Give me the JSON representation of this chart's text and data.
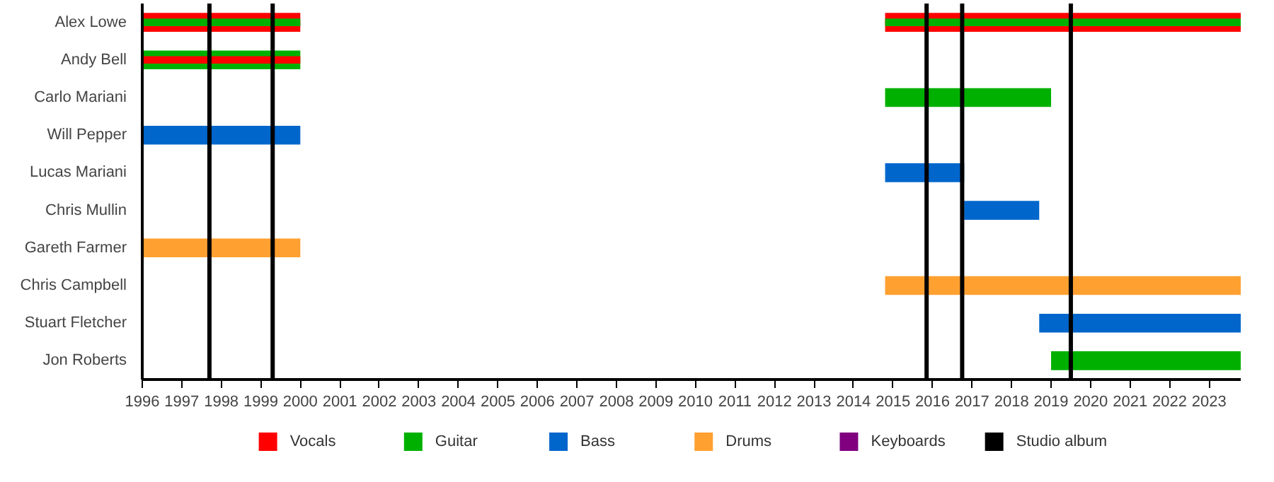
{
  "chart_data": {
    "type": "bar",
    "orientation": "horizontal",
    "categories": [
      "Alex Lowe",
      "Andy Bell",
      "Carlo Mariani",
      "Will Pepper",
      "Lucas Mariani",
      "Chris Mullin",
      "Gareth Farmer",
      "Chris Campbell",
      "Stuart Fletcher",
      "Jon Roberts"
    ],
    "series": [
      {
        "name": "Vocals",
        "color": "#ff0000",
        "base": [
          1996,
          null,
          null,
          null,
          null,
          null,
          null,
          null,
          null,
          null
        ],
        "values": [
          4,
          null,
          null,
          null,
          null,
          null,
          null,
          null,
          null,
          null
        ]
      },
      {
        "color": "#ff0000",
        "base": [
          2014.8,
          null,
          null,
          null,
          null,
          null,
          null,
          null,
          null,
          null
        ],
        "values": [
          9.0,
          null,
          null,
          null,
          null,
          null,
          null,
          null,
          null,
          null
        ]
      },
      {
        "name": "Guitar",
        "color": "#00b000",
        "base": [
          null,
          1996,
          2014.8,
          null,
          null,
          null,
          null,
          null,
          null,
          2019.0
        ],
        "values": [
          null,
          4,
          4.2,
          null,
          null,
          null,
          null,
          null,
          null,
          4.8
        ]
      },
      {
        "color": "#00b000",
        "base": [
          1996,
          null,
          null,
          null,
          null,
          null,
          null,
          null,
          null,
          null
        ],
        "values": [
          4,
          null,
          null,
          null,
          null,
          null,
          null,
          null,
          null,
          null
        ]
      },
      {
        "color": "#00b000",
        "base": [
          2014.8,
          null,
          null,
          null,
          null,
          null,
          null,
          null,
          null,
          null
        ],
        "values": [
          9.0,
          null,
          null,
          null,
          null,
          null,
          null,
          null,
          null,
          null
        ]
      },
      {
        "color": "#ff0000",
        "base": [
          null,
          1996,
          null,
          null,
          null,
          null,
          null,
          null,
          null,
          null
        ],
        "values": [
          null,
          4,
          null,
          null,
          null,
          null,
          null,
          null,
          null,
          null
        ]
      },
      {
        "name": "Bass",
        "color": "#0066cc",
        "base": [
          null,
          null,
          null,
          1996,
          2014.8,
          2016.8,
          null,
          null,
          2018.7,
          null
        ],
        "values": [
          null,
          null,
          null,
          4,
          2.0,
          1.9,
          null,
          null,
          5.1,
          null
        ]
      },
      {
        "name": "Drums",
        "color": "#ffa030",
        "base": [
          null,
          null,
          null,
          null,
          null,
          null,
          1996,
          2014.8,
          null,
          null
        ],
        "values": [
          null,
          null,
          null,
          null,
          null,
          null,
          4,
          9.0,
          null,
          null
        ]
      },
      {
        "name": "Keyboards",
        "color": "#800080",
        "base": [
          null,
          null,
          null,
          null,
          null,
          null,
          null,
          null,
          null,
          null
        ],
        "values": [
          null,
          null,
          null,
          null,
          null,
          null,
          null,
          null,
          null,
          null
        ]
      },
      {
        "name": "Studio album",
        "color": "#000000",
        "type": "line",
        "values": [
          null,
          null,
          null,
          null,
          null,
          null,
          null,
          null,
          null,
          null
        ]
      }
    ],
    "ref_lines": [
      {
        "axis": "x",
        "value": 1997.7,
        "color": "#000000"
      },
      {
        "axis": "x",
        "value": 1999.3,
        "color": "#000000"
      },
      {
        "axis": "x",
        "value": 2015.85,
        "color": "#000000"
      },
      {
        "axis": "x",
        "value": 2016.75,
        "color": "#000000"
      },
      {
        "axis": "x",
        "value": 2019.5,
        "color": "#000000"
      }
    ],
    "xlim": [
      1996,
      2023.8
    ],
    "xticks": [
      1996,
      1997,
      1998,
      1999,
      2000,
      2001,
      2002,
      2003,
      2004,
      2005,
      2006,
      2007,
      2008,
      2009,
      2010,
      2011,
      2012,
      2013,
      2014,
      2015,
      2016,
      2017,
      2018,
      2019,
      2020,
      2021,
      2022,
      2023
    ],
    "legend": "bottom"
  }
}
